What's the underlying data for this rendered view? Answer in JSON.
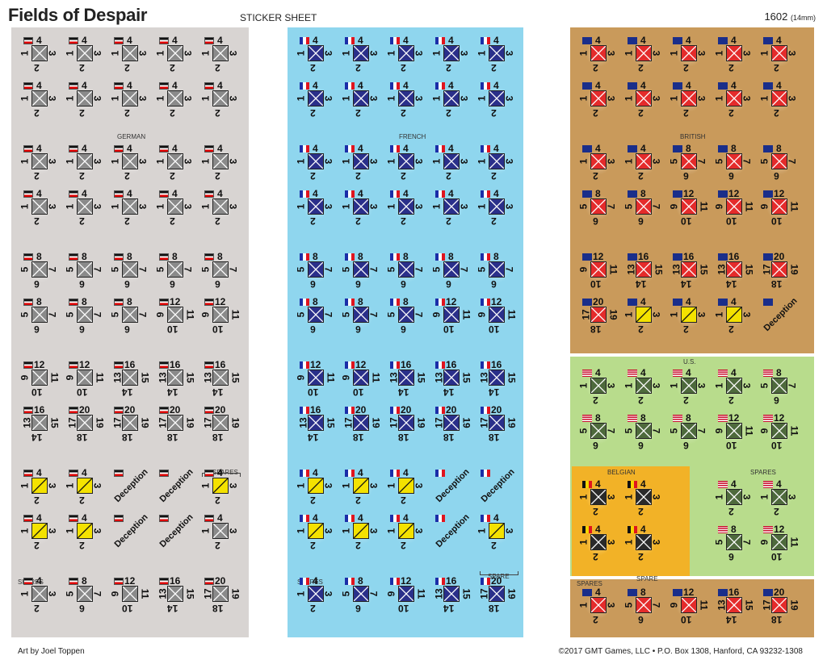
{
  "header": {
    "title": "Fields of Despair",
    "subtitle": "STICKER SHEET",
    "sheet_number": "1602",
    "sheet_size": "(14mm)"
  },
  "footer": {
    "credit": "Art by Joel Toppen",
    "copyright": "©2017 GMT Games, LLC  •  P.O. Box 1308, Hanford, CA 93232-1308"
  },
  "colors": {
    "german_bg": "#d8d4d2",
    "french_bg": "#8fd6ee",
    "british_bg": "#c99a5b",
    "us_bg": "#b8dc8c",
    "belgian_bg": "#f2b227",
    "german_unit": "#8a8a8a",
    "french_unit": "#2a2f8a",
    "british_unit": "#e42b2b",
    "us_unit": "#4e6a3c",
    "belgian_unit": "#2a2a2a",
    "yellow_unit": "#f4e200"
  },
  "labels": {
    "german": "GERMAN",
    "french": "FRENCH",
    "british": "BRITISH",
    "us": "U.S.",
    "belgian": "BELGIAN",
    "spares": "SPARES",
    "spare": "SPARE",
    "deception": "Deception"
  },
  "german": {
    "rows": [
      [
        "4-1-3-2",
        "4-1-3-2",
        "4-1-3-2",
        "4-1-3-2",
        "4-1-3-2"
      ],
      [
        "4-1-3-2",
        "4-1-3-2",
        "4-1-3-2",
        "4-1-3-2",
        "4-1-3-2"
      ],
      [
        "4-1-3-2",
        "4-1-3-2",
        "4-1-3-2",
        "4-1-3-2",
        "4-1-3-2"
      ],
      [
        "4-1-3-2",
        "4-1-3-2",
        "4-1-3-2",
        "4-1-3-2",
        "4-1-3-2"
      ],
      [
        "8-5-7-6",
        "8-5-7-6",
        "8-5-7-6",
        "8-5-7-6",
        "8-5-7-6"
      ],
      [
        "8-5-7-6",
        "8-5-7-6",
        "8-5-7-6",
        "12-9-11-10",
        "12-9-11-10"
      ],
      [
        "12-9-11-10",
        "12-9-11-10",
        "16-13-15-14",
        "16-13-15-14",
        "16-13-15-14"
      ],
      [
        "16-13-15-14",
        "20-17-19-18",
        "20-17-19-18",
        "20-17-19-18",
        "20-17-19-18"
      ],
      [
        "Y4-1-3-2",
        "Y4-1-3-2",
        "D",
        "D",
        "Y4-1-3-2"
      ],
      [
        "Y4-1-3-2",
        "Y4-1-3-2",
        "D",
        "D",
        "4-1-3-2"
      ],
      [
        "4-1-3-2",
        "8-5-7-6",
        "12-9-11-10",
        "16-13-15-14",
        "20-17-19-18"
      ]
    ]
  },
  "french": {
    "rows": [
      [
        "4-1-3-2",
        "4-1-3-2",
        "4-1-3-2",
        "4-1-3-2",
        "4-1-3-2"
      ],
      [
        "4-1-3-2",
        "4-1-3-2",
        "4-1-3-2",
        "4-1-3-2",
        "4-1-3-2"
      ],
      [
        "4-1-3-2",
        "4-1-3-2",
        "4-1-3-2",
        "4-1-3-2",
        "4-1-3-2"
      ],
      [
        "4-1-3-2",
        "4-1-3-2",
        "4-1-3-2",
        "4-1-3-2",
        "4-1-3-2"
      ],
      [
        "8-5-7-6",
        "8-5-7-6",
        "8-5-7-6",
        "8-5-7-6",
        "8-5-7-6"
      ],
      [
        "8-5-7-6",
        "8-5-7-6",
        "8-5-7-6",
        "12-9-11-10",
        "12-9-11-10"
      ],
      [
        "12-9-11-10",
        "12-9-11-10",
        "16-13-15-14",
        "16-13-15-14",
        "16-13-15-14"
      ],
      [
        "16-13-15-14",
        "20-17-19-18",
        "20-17-19-18",
        "20-17-19-18",
        "20-17-19-18"
      ],
      [
        "Y4-1-3-2",
        "Y4-1-3-2",
        "Y4-1-3-2",
        "D",
        "D"
      ],
      [
        "Y4-1-3-2",
        "Y4-1-3-2",
        "Y4-1-3-2",
        "D",
        "Y4-1-3-2"
      ],
      [
        "4-1-3-2",
        "8-5-7-6",
        "12-9-11-10",
        "16-13-15-14",
        "20-17-19-18"
      ]
    ]
  },
  "british": {
    "rows": [
      [
        "4-1-3-2",
        "4-1-3-2",
        "4-1-3-2",
        "4-1-3-2",
        "4-1-3-2"
      ],
      [
        "4-1-3-2",
        "4-1-3-2",
        "4-1-3-2",
        "4-1-3-2",
        "4-1-3-2"
      ],
      [
        "4-1-3-2",
        "4-1-3-2",
        "8-5-7-6",
        "8-5-7-6",
        "8-5-7-6"
      ],
      [
        "8-5-7-6",
        "8-5-7-6",
        "12-9-11-10",
        "12-9-11-10",
        "12-9-11-10"
      ],
      [
        "12-9-11-10",
        "16-13-15-14",
        "16-13-15-14",
        "16-13-15-14",
        "20-17-19-18"
      ],
      [
        "20-17-19-18",
        "Y4-1-3-2",
        "Y4-1-3-2",
        "Y4-1-3-2",
        "D"
      ]
    ],
    "spares": [
      "4-1-3-2",
      "8-5-7-6",
      "12-9-11-10",
      "16-13-15-14",
      "20-17-19-18"
    ]
  },
  "us": {
    "rows": [
      [
        "4-1-3-2",
        "4-1-3-2",
        "4-1-3-2",
        "4-1-3-2",
        "8-5-7-6"
      ],
      [
        "8-5-7-6",
        "8-5-7-6",
        "8-5-7-6",
        "12-9-11-10",
        "12-9-11-10"
      ]
    ],
    "spares": [
      [
        "4-1-3-2",
        "4-1-3-2"
      ],
      [
        "8-5-7-6",
        "12-9-11-10"
      ]
    ]
  },
  "belgian": {
    "rows": [
      [
        "4-1-3-2",
        "4-1-3-2"
      ],
      [
        "4-1-3-2",
        "4-1-3-2"
      ]
    ]
  }
}
